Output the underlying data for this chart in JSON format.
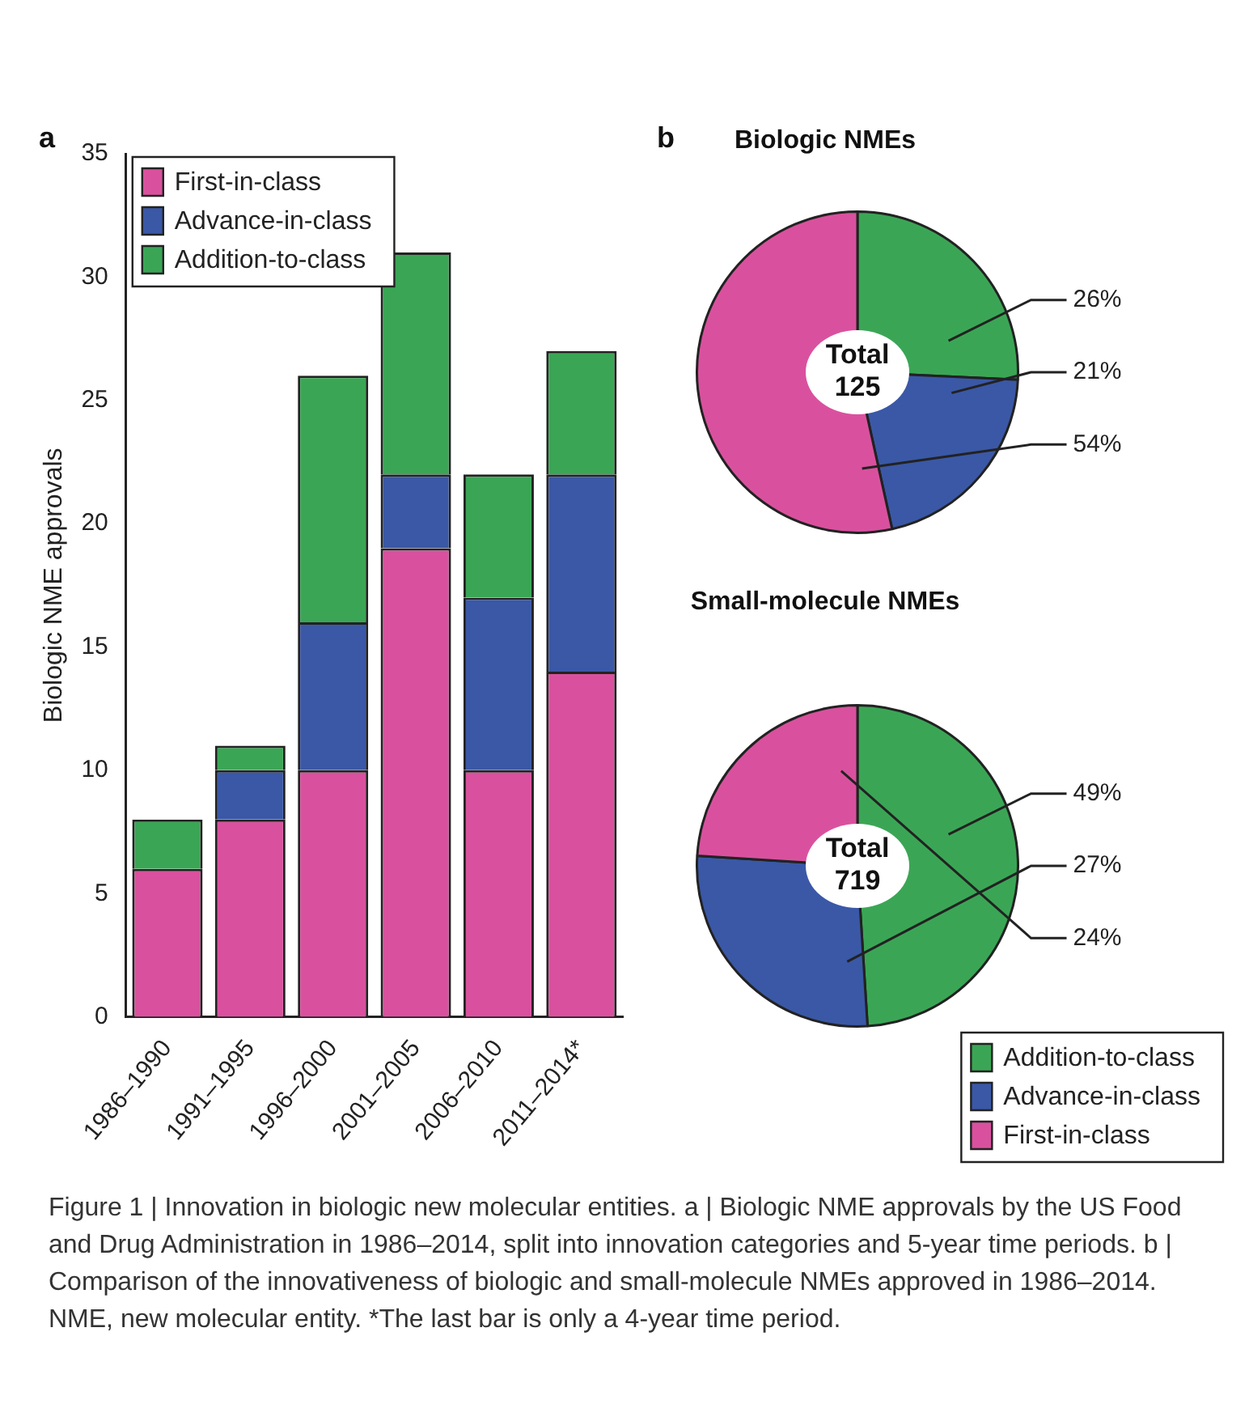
{
  "chart_data": [
    {
      "type": "bar",
      "stacked": true,
      "ylabel": "Biologic NME approvals",
      "categories": [
        "1986–1990",
        "1991–1995",
        "1996–2000",
        "2001–2005",
        "2006–2010",
        "2011–2014*"
      ],
      "series": [
        {
          "name": "First-in-class",
          "color": "#d9519e",
          "values": [
            6,
            8,
            10,
            19,
            10,
            14
          ]
        },
        {
          "name": "Advance-in-class",
          "color": "#3a58a6",
          "values": [
            0,
            2,
            6,
            3,
            7,
            8
          ]
        },
        {
          "name": "Addition-to-class",
          "color": "#3aa655",
          "values": [
            2,
            1,
            10,
            9,
            5,
            5
          ]
        }
      ],
      "ylim": [
        0,
        35
      ],
      "yticks": [
        0,
        5,
        10,
        15,
        20,
        25,
        30,
        35
      ],
      "grid": false,
      "legend": "top left",
      "annotations": [
        "a",
        "Figure 1 | Innovation in biologic new molecular entities. a | Biologic NME approvals by the US Food and Drug Administration in 1986–2014, split into innovation categories and 5-year time periods. b | Comparison of the innovativeness of biologic and small-molecule NMEs approved in 1986–2014. NME, new molecular entity. *The last bar is only a 4-year time period."
      ]
    },
    {
      "type": "pie",
      "title": "Biologic NMEs",
      "categories": [
        null,
        null,
        null
      ],
      "values": [
        26,
        21,
        54
      ],
      "colors": [
        "#3aa655",
        "#3a58a6",
        "#d9519e"
      ],
      "value_labels": [
        "26%",
        "21%",
        "54%"
      ],
      "legend": false,
      "annotations": [
        "b",
        "Total",
        "125"
      ]
    },
    {
      "type": "pie",
      "title": "Small-molecule NMEs",
      "categories": [
        "Addition-to-class",
        "Advance-in-class",
        "First-in-class"
      ],
      "values": [
        49,
        27,
        24
      ],
      "colors": [
        "#3aa655",
        "#3a58a6",
        "#d9519e"
      ],
      "value_labels": [
        "49%",
        "27%",
        "24%"
      ],
      "legend": "bottom right",
      "annotations": [
        "Total",
        "719"
      ]
    }
  ]
}
